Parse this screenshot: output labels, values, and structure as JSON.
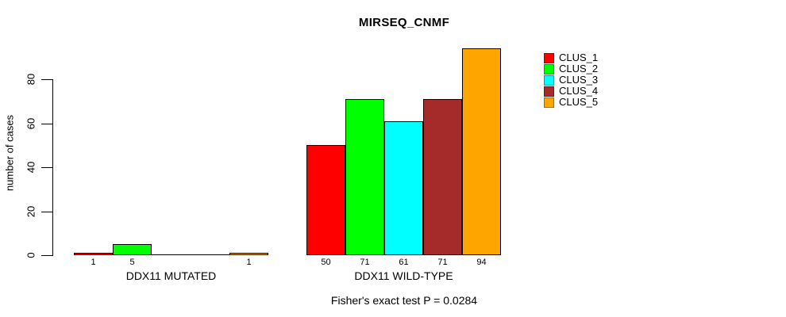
{
  "chart_data": {
    "type": "bar",
    "title": "MIRSEQ_CNMF",
    "ylabel": "number of cases",
    "xlabel": "",
    "ylim": [
      0,
      94
    ],
    "yticks": [
      0,
      20,
      40,
      60,
      80
    ],
    "grid": false,
    "legend_position": "right",
    "series": [
      "CLUS_1",
      "CLUS_2",
      "CLUS_3",
      "CLUS_4",
      "CLUS_5"
    ],
    "colors": [
      "#FF0000",
      "#00FF00",
      "#00FFFF",
      "#A52A2A",
      "#FFA500"
    ],
    "groups": [
      {
        "label": "DDX11 MUTATED",
        "values": [
          1,
          5,
          0,
          0,
          1
        ],
        "bar_labels": [
          "1",
          "5",
          "",
          "",
          "1"
        ]
      },
      {
        "label": "DDX11 WILD-TYPE",
        "values": [
          50,
          71,
          61,
          71,
          94
        ],
        "bar_labels": [
          "50",
          "71",
          "61",
          "71",
          "94"
        ]
      }
    ],
    "annotation": "Fisher's exact test P = 0.0284"
  }
}
